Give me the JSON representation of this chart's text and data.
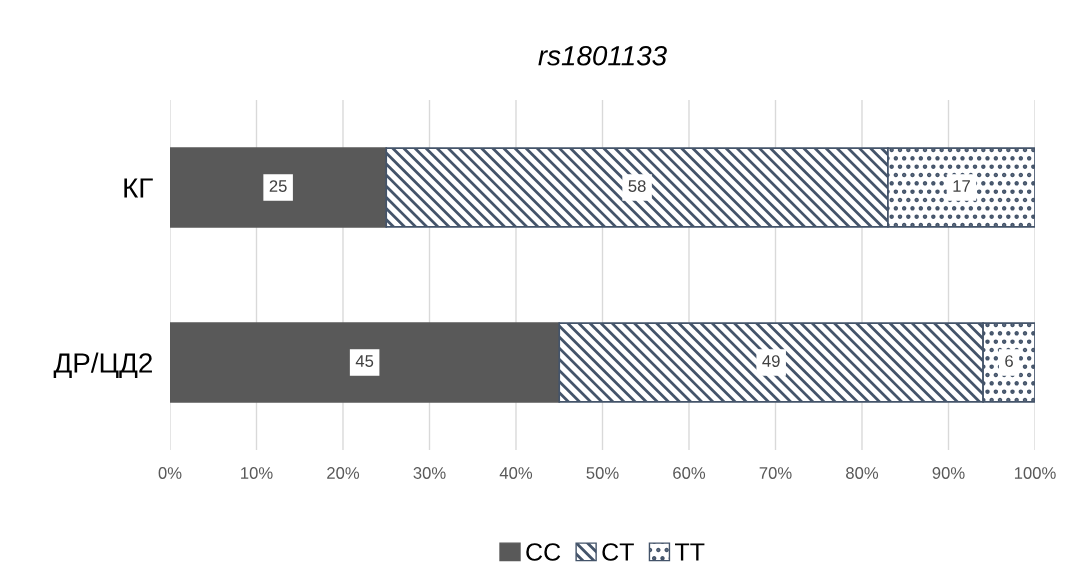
{
  "chart_data": {
    "type": "bar",
    "title": "rs1801133",
    "orientation": "horizontal",
    "stacked": true,
    "categories": [
      "КГ",
      "ДР/ЦД2"
    ],
    "series": [
      {
        "name": "CC",
        "color": "#595959",
        "values": [
          25,
          45
        ]
      },
      {
        "name": "CT",
        "color": "#44546a",
        "values": [
          58,
          49
        ]
      },
      {
        "name": "TT",
        "color": "#44546a",
        "values": [
          17,
          6
        ]
      }
    ],
    "xlim": [
      0,
      100
    ],
    "xticks": [
      {
        "value": 0,
        "label": "0%"
      },
      {
        "value": 10,
        "label": "10%"
      },
      {
        "value": 20,
        "label": "20%"
      },
      {
        "value": 30,
        "label": "30%"
      },
      {
        "value": 40,
        "label": "40%"
      },
      {
        "value": 50,
        "label": "50%"
      },
      {
        "value": 60,
        "label": "60%"
      },
      {
        "value": 70,
        "label": "70%"
      },
      {
        "value": 80,
        "label": "80%"
      },
      {
        "value": 90,
        "label": "90%"
      },
      {
        "value": 100,
        "label": "100%"
      }
    ],
    "grid": "x",
    "legend": "bottom",
    "data_labels": true
  }
}
